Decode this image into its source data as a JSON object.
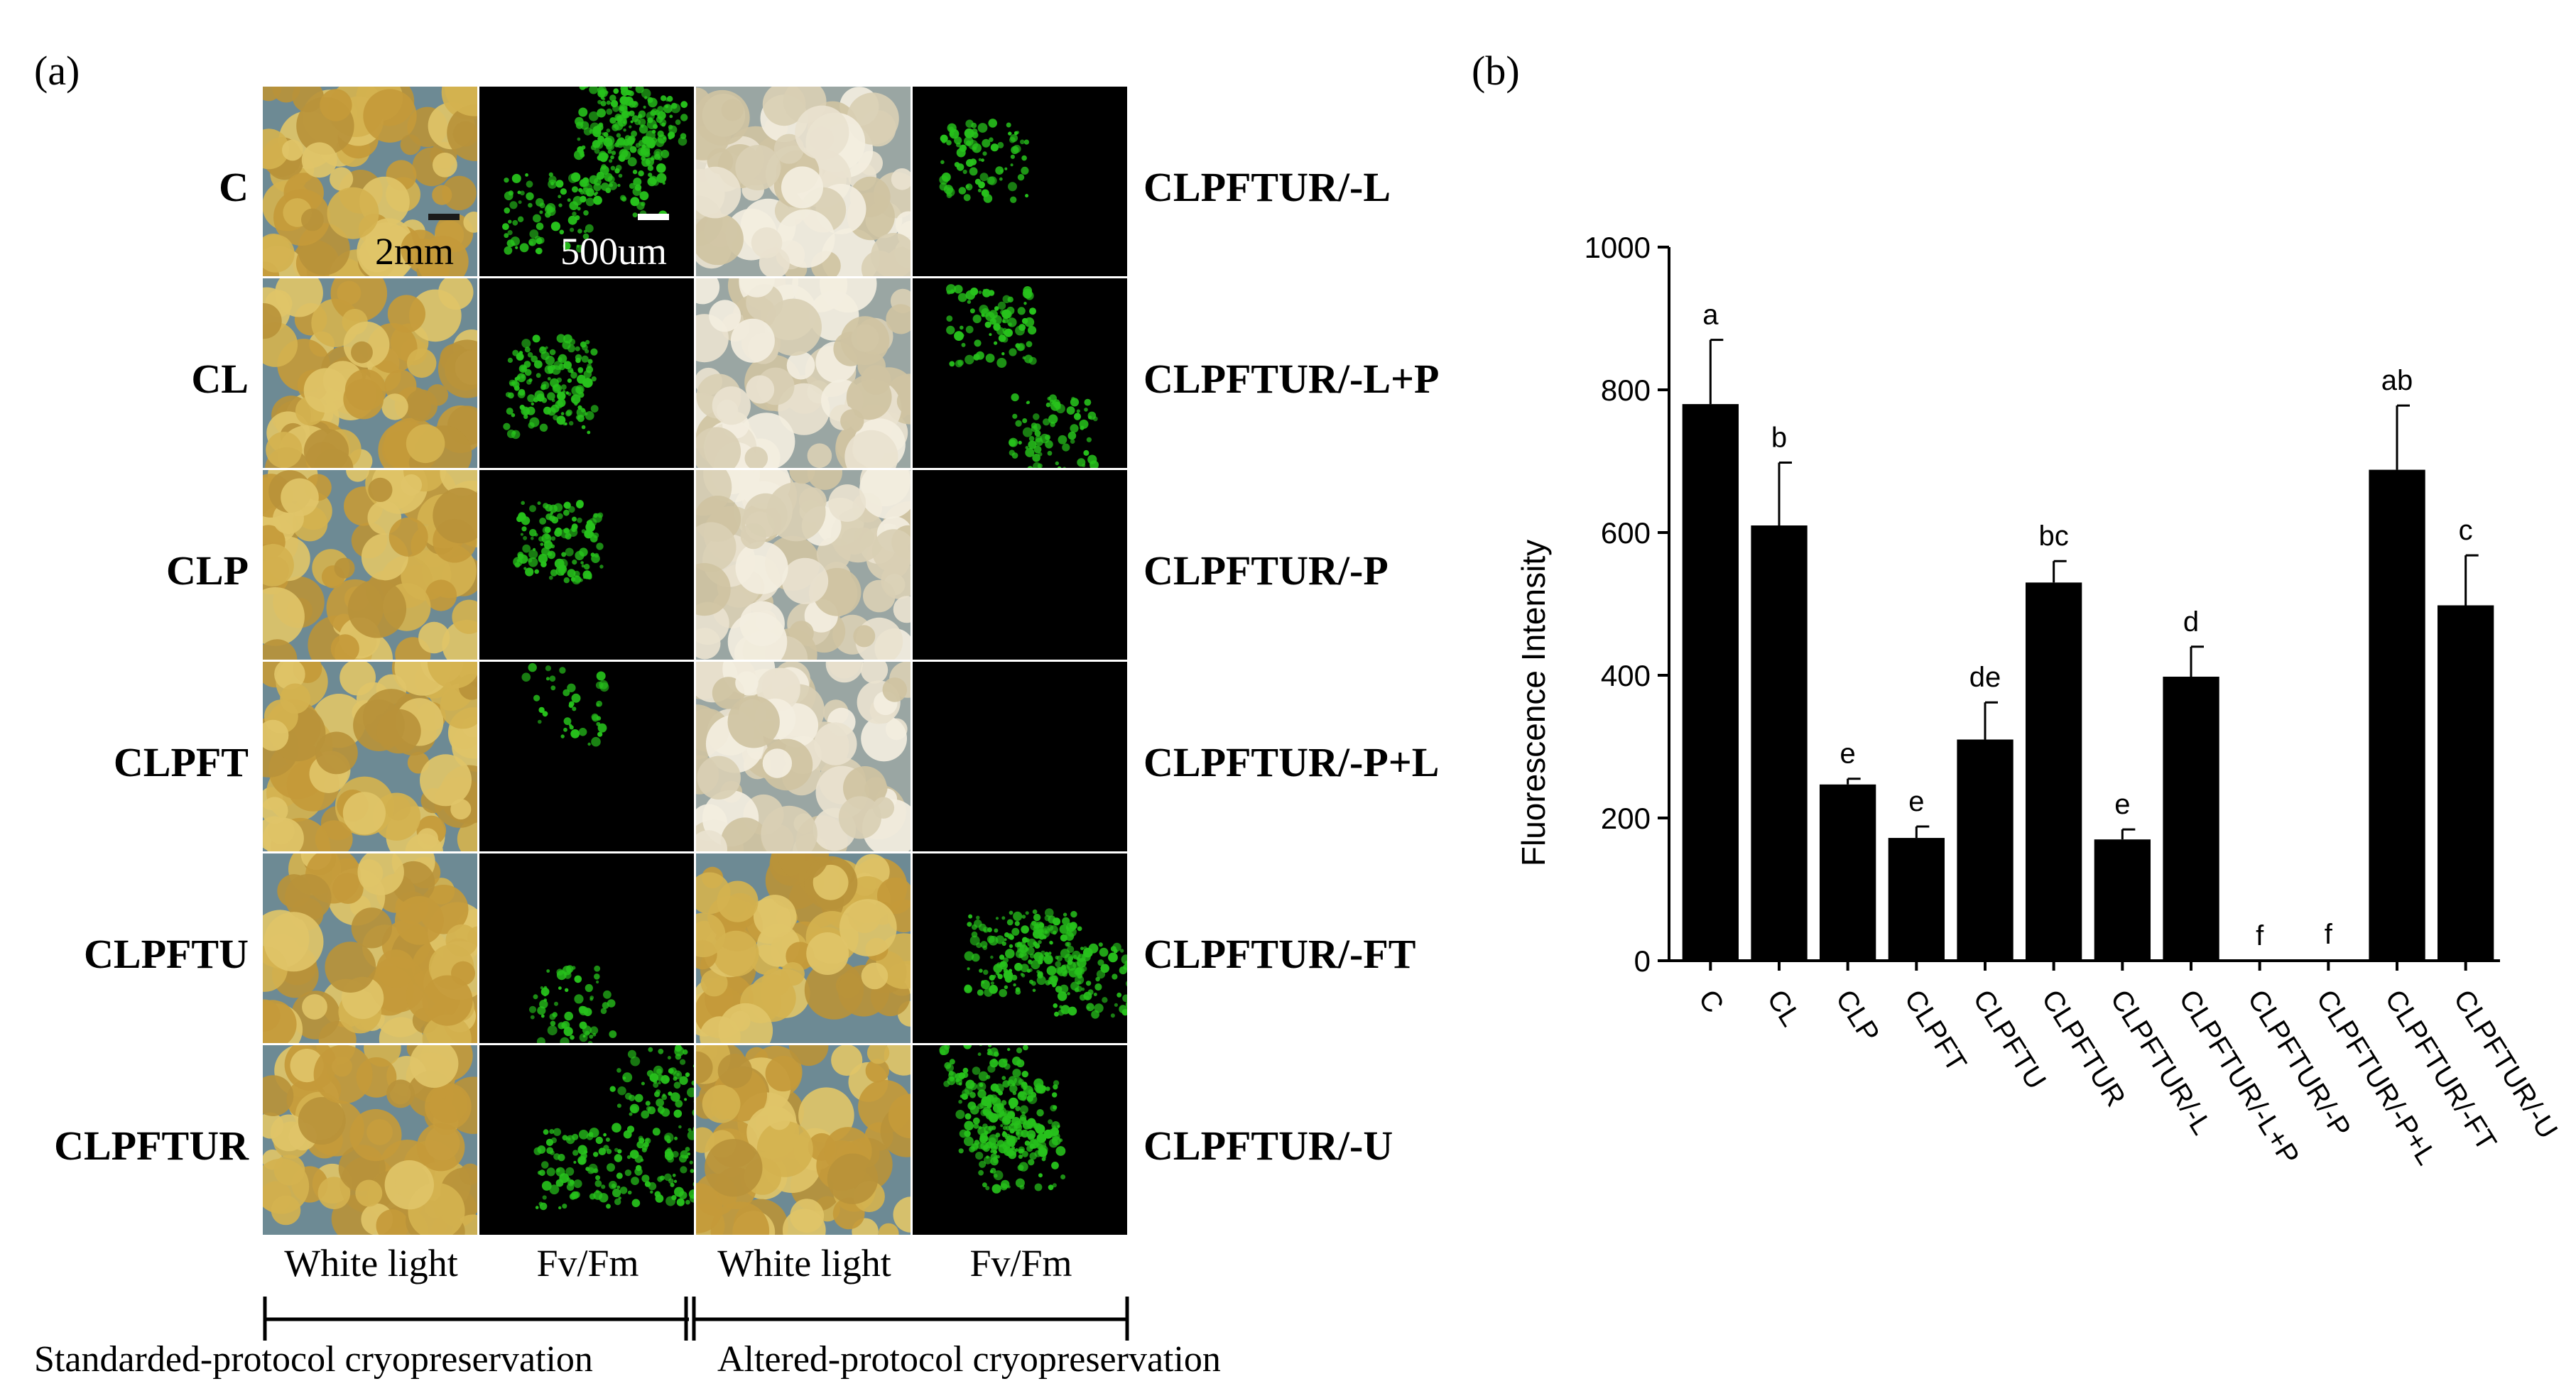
{
  "panel_a": {
    "label": "(a)",
    "left_rows": [
      "C",
      "CL",
      "CLP",
      "CLPFT",
      "CLPFTU",
      "CLPFTUR"
    ],
    "right_rows": [
      "CLPFTUR/-L",
      "CLPFTUR/-L+P",
      "CLPFTUR/-P",
      "CLPFTUR/-P+L",
      "CLPFTUR/-FT",
      "CLPFTUR/-U"
    ],
    "columns": [
      "White light",
      "Fv/Fm",
      "White light",
      "Fv/Fm"
    ],
    "scale_bar_1": "2mm",
    "scale_bar_2": "500um",
    "bracket_left": "Standarded-protocol cryopreservation",
    "bracket_right": "Altered-protocol cryopreservation",
    "colors": {
      "callus_yellow": "#c9a94a",
      "callus_pale": "#ddd5bf",
      "fluorescence_green": "#27c21c",
      "background_blue_grey": "#6d8a94"
    }
  },
  "chart_data": {
    "panel_label": "(b)",
    "type": "bar",
    "title": "",
    "xlabel": "",
    "ylabel": "Fluorescence Intensity",
    "ylim": [
      0,
      1000
    ],
    "yticks": [
      0,
      200,
      400,
      600,
      800,
      1000
    ],
    "categories": [
      "C",
      "CL",
      "CLP",
      "CLPFT",
      "CLPFTU",
      "CLPFTUR",
      "CLPFTUR/-L",
      "CLPFTUR/-L+P",
      "CLPFTUR/-P",
      "CLPFTUR/-P+L",
      "CLPFTUR/-FT",
      "CLPFTUR/-U"
    ],
    "values": [
      780,
      610,
      247,
      172,
      310,
      530,
      170,
      398,
      0,
      2,
      688,
      498
    ],
    "errors": [
      90,
      88,
      8,
      16,
      52,
      30,
      14,
      42,
      0,
      0,
      90,
      70
    ],
    "significance_letters": [
      "a",
      "b",
      "e",
      "e",
      "de",
      "bc",
      "e",
      "d",
      "f",
      "f",
      "ab",
      "c"
    ],
    "bar_color": "#000000",
    "grid": false
  }
}
